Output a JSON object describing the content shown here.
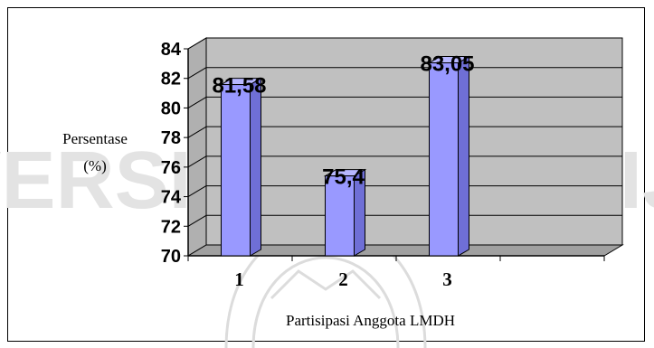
{
  "colors": {
    "bar_face": "#9999ff",
    "bar_side": "#6f6fd6",
    "bar_top": "#b8b8ff",
    "wall": "#c0c0c0",
    "floor": "#a0a0a0",
    "watermark": "#d6d6d6"
  },
  "watermark_text": "UNIVERSITAS BRAWIJAYA",
  "chart_data": {
    "type": "bar",
    "categories": [
      "1",
      "2",
      "3"
    ],
    "values": [
      81.58,
      75.4,
      83.05
    ],
    "value_labels": [
      "81,58",
      "75,4",
      "83,05"
    ],
    "xlabel": "Partisipasi Anggota LMDH",
    "ylabel_line1": "Persentase",
    "ylabel_line2": "(%)",
    "ylim": [
      70,
      84
    ],
    "yticks": [
      70,
      72,
      74,
      76,
      78,
      80,
      82,
      84
    ],
    "grid": true,
    "three_d": true
  }
}
